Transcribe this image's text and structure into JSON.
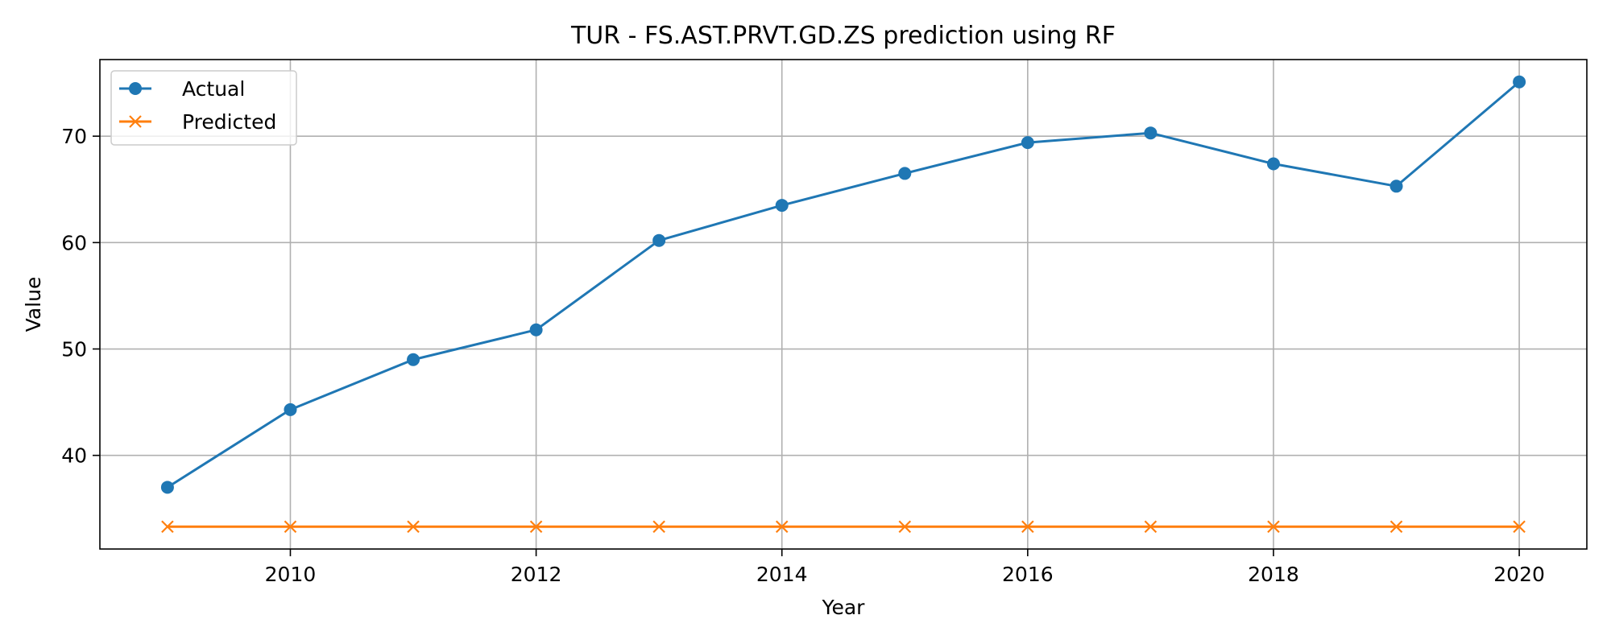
{
  "chart_data": {
    "type": "line",
    "title": "TUR - FS.AST.PRVT.GD.ZS prediction using RF",
    "xlabel": "Year",
    "ylabel": "Value",
    "x": [
      2009,
      2010,
      2011,
      2012,
      2013,
      2014,
      2015,
      2016,
      2017,
      2018,
      2019,
      2020
    ],
    "series": [
      {
        "name": "Actual",
        "color": "#1f77b4",
        "marker": "circle",
        "values": [
          37.0,
          44.3,
          49.0,
          51.8,
          60.2,
          63.5,
          66.5,
          69.4,
          70.3,
          67.4,
          65.3,
          75.1
        ]
      },
      {
        "name": "Predicted",
        "color": "#ff7f0e",
        "marker": "x",
        "values": [
          33.3,
          33.3,
          33.3,
          33.3,
          33.3,
          33.3,
          33.3,
          33.3,
          33.3,
          33.3,
          33.3,
          33.3
        ]
      }
    ],
    "xlim": [
      2008.45,
      2020.55
    ],
    "ylim": [
      31.2,
      77.2
    ],
    "xticks": [
      2010,
      2012,
      2014,
      2016,
      2018,
      2020
    ],
    "yticks": [
      40,
      50,
      60,
      70
    ],
    "grid": true,
    "legend_position": "top-left"
  }
}
